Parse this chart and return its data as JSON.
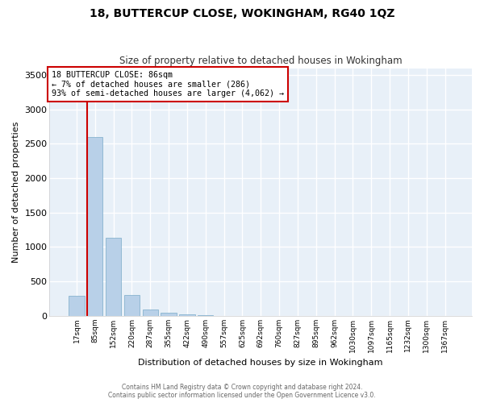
{
  "title": "18, BUTTERCUP CLOSE, WOKINGHAM, RG40 1QZ",
  "subtitle": "Size of property relative to detached houses in Wokingham",
  "xlabel": "Distribution of detached houses by size in Wokingham",
  "ylabel": "Number of detached properties",
  "bar_color": "#b8d0e8",
  "bar_edge_color": "#7aaac8",
  "background_color": "#e8f0f8",
  "fig_background_color": "#ffffff",
  "grid_color": "#ffffff",
  "categories": [
    "17sqm",
    "85sqm",
    "152sqm",
    "220sqm",
    "287sqm",
    "355sqm",
    "422sqm",
    "490sqm",
    "557sqm",
    "625sqm",
    "692sqm",
    "760sqm",
    "827sqm",
    "895sqm",
    "962sqm",
    "1030sqm",
    "1097sqm",
    "1165sqm",
    "1232sqm",
    "1300sqm",
    "1367sqm"
  ],
  "values": [
    286,
    2600,
    1130,
    300,
    90,
    40,
    20,
    5,
    0,
    0,
    0,
    0,
    0,
    0,
    0,
    0,
    0,
    0,
    0,
    0,
    0
  ],
  "ylim": [
    0,
    3600
  ],
  "yticks": [
    0,
    500,
    1000,
    1500,
    2000,
    2500,
    3000,
    3500
  ],
  "property_line_color": "#cc0000",
  "annotation_text": "18 BUTTERCUP CLOSE: 86sqm\n← 7% of detached houses are smaller (286)\n93% of semi-detached houses are larger (4,062) →",
  "annotation_box_color": "#cc0000",
  "footer_line1": "Contains HM Land Registry data © Crown copyright and database right 2024.",
  "footer_line2": "Contains public sector information licensed under the Open Government Licence v3.0."
}
